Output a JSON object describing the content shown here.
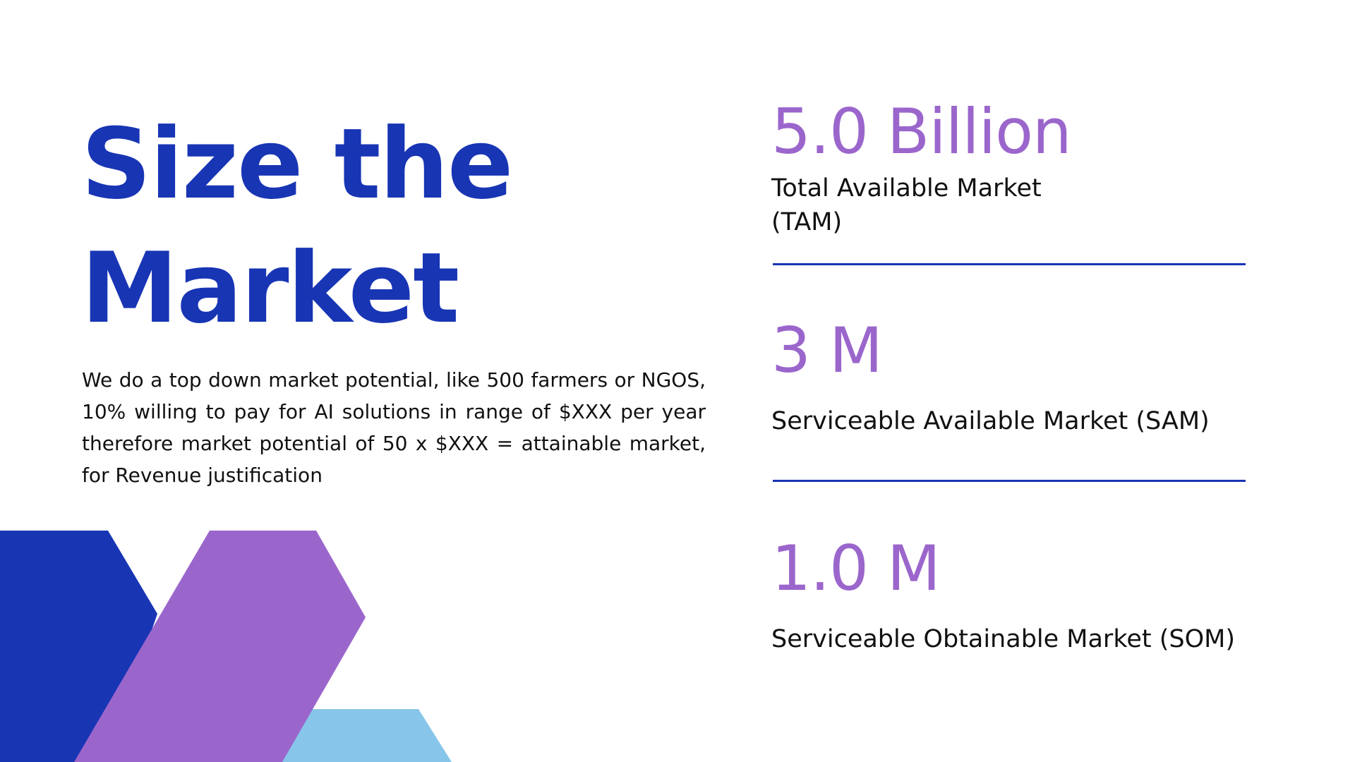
{
  "slide": {
    "title_line1": "Size the",
    "title_line2": "Market",
    "body": "We do a top down market potential, like 500 farmers or NGOS, 10% willing to pay for AI solutions in  range of $XXX per year therefore market potential of 50 x $XXX = attainable market, for Revenue  justification"
  },
  "metrics": [
    {
      "value": "5.0 Billion",
      "label": "Total Available Market (TAM)"
    },
    {
      "value": "3 M",
      "label": "Serviceable Available Market (SAM)"
    },
    {
      "value": "1.0 M",
      "label": "Serviceable Obtainable Market (SOM)"
    }
  ],
  "colors": {
    "title_blue": "#1835b4",
    "metric_purple": "#9b66cc",
    "shape_light_blue": "#87c6ea"
  }
}
